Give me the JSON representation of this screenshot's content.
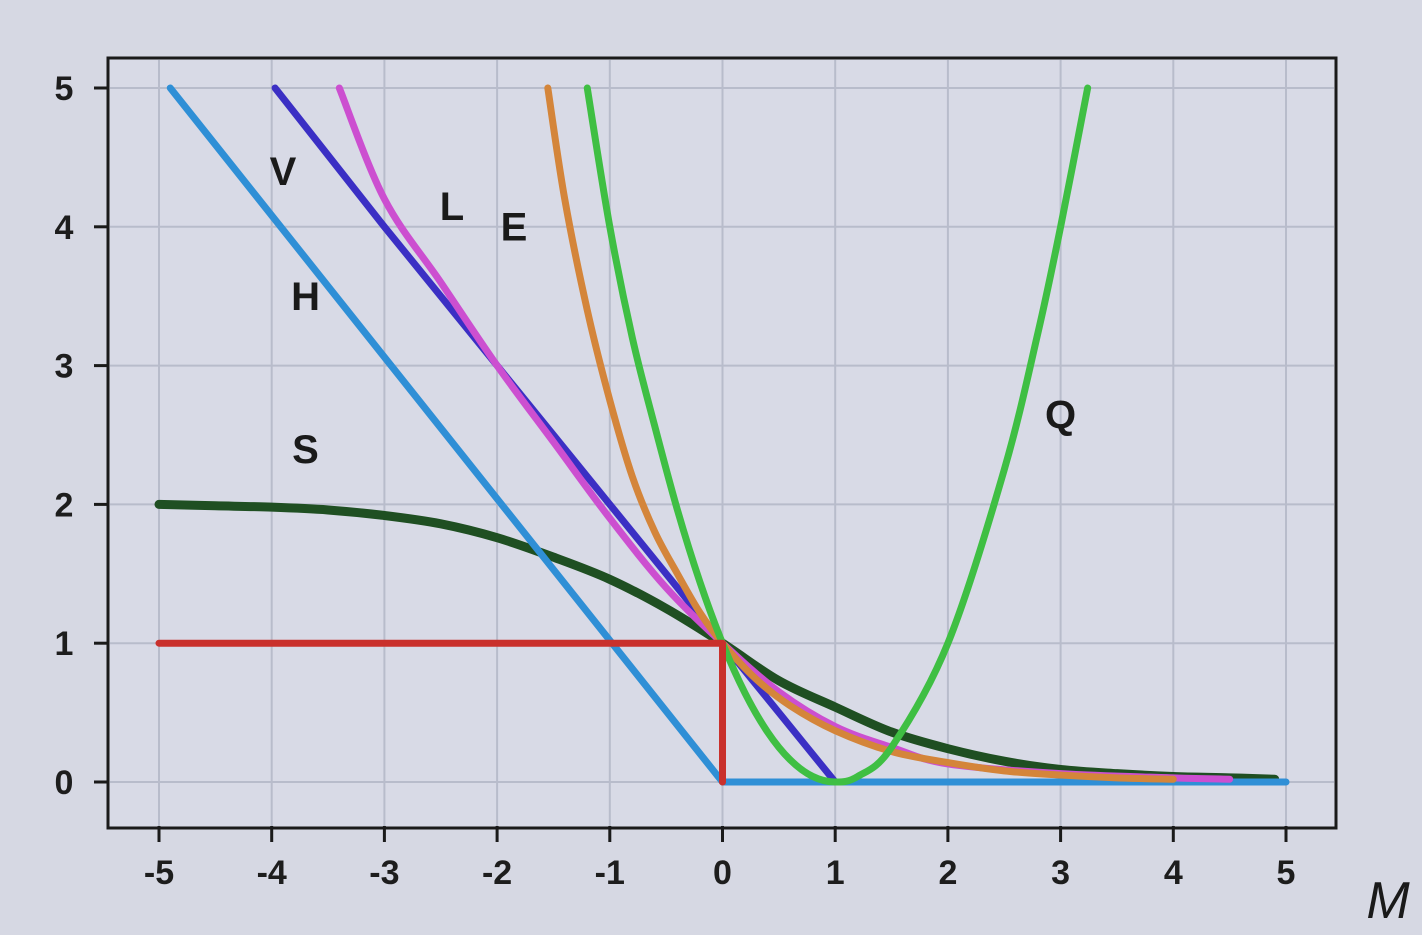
{
  "chart_data": {
    "type": "line",
    "title": "",
    "xlabel": "M",
    "ylabel": "",
    "xlim": [
      -5,
      5
    ],
    "ylim": [
      0,
      5
    ],
    "x_ticks": [
      "-5",
      "-4",
      "-3",
      "-2",
      "-1",
      "0",
      "1",
      "2",
      "3",
      "4",
      "5"
    ],
    "y_ticks": [
      "0",
      "1",
      "2",
      "3",
      "4",
      "5"
    ],
    "grid": true,
    "legend": "none",
    "series": [
      {
        "name": "S",
        "color": "#1f4f22",
        "points": [
          [
            -5,
            2.0
          ],
          [
            -4.5,
            1.99
          ],
          [
            -4,
            1.98
          ],
          [
            -3.5,
            1.96
          ],
          [
            -3,
            1.92
          ],
          [
            -2.5,
            1.86
          ],
          [
            -2,
            1.76
          ],
          [
            -1.5,
            1.62
          ],
          [
            -1,
            1.46
          ],
          [
            -0.5,
            1.25
          ],
          [
            0,
            1.0
          ],
          [
            0.5,
            0.73
          ],
          [
            1,
            0.54
          ],
          [
            1.5,
            0.36
          ],
          [
            2,
            0.24
          ],
          [
            2.5,
            0.15
          ],
          [
            3,
            0.09
          ],
          [
            3.5,
            0.06
          ],
          [
            4,
            0.04
          ],
          [
            4.5,
            0.03
          ],
          [
            4.9,
            0.02
          ]
        ]
      },
      {
        "name": "H",
        "color": "#2f8fd6",
        "points": [
          [
            -4.9,
            5.0
          ],
          [
            0,
            0
          ],
          [
            1,
            0
          ],
          [
            2,
            0
          ],
          [
            3,
            0
          ],
          [
            4,
            0
          ],
          [
            5,
            0
          ]
        ]
      },
      {
        "name": "V",
        "color": "#3b2fc4",
        "points": [
          [
            -3.97,
            5.0
          ],
          [
            -3,
            4.0
          ],
          [
            -2,
            3.0
          ],
          [
            -1.5,
            2.5
          ],
          [
            -1,
            2.0
          ],
          [
            -0.5,
            1.5
          ],
          [
            -0.25,
            1.25
          ],
          [
            0,
            1.0
          ],
          [
            0.25,
            0.75
          ],
          [
            0.5,
            0.5
          ],
          [
            0.75,
            0.25
          ],
          [
            1,
            0
          ]
        ]
      },
      {
        "name": "L",
        "color": "#cc4fd0",
        "points": [
          [
            -3.4,
            5.0
          ],
          [
            -3,
            4.2
          ],
          [
            -2.5,
            3.6
          ],
          [
            -2,
            3.0
          ],
          [
            -1.5,
            2.45
          ],
          [
            -1,
            1.9
          ],
          [
            -0.5,
            1.4
          ],
          [
            0,
            1.0
          ],
          [
            0.5,
            0.65
          ],
          [
            1,
            0.4
          ],
          [
            1.5,
            0.25
          ],
          [
            2,
            0.13
          ],
          [
            3,
            0.06
          ],
          [
            4,
            0.03
          ],
          [
            4.5,
            0.02
          ]
        ]
      },
      {
        "name": "E",
        "color": "#d4853a",
        "points": [
          [
            -1.55,
            5.0
          ],
          [
            -1.4,
            4.2
          ],
          [
            -1.2,
            3.4
          ],
          [
            -1,
            2.75
          ],
          [
            -0.8,
            2.2
          ],
          [
            -0.6,
            1.8
          ],
          [
            -0.4,
            1.5
          ],
          [
            -0.2,
            1.22
          ],
          [
            0,
            1.0
          ],
          [
            0.3,
            0.74
          ],
          [
            0.6,
            0.55
          ],
          [
            1,
            0.37
          ],
          [
            1.5,
            0.22
          ],
          [
            2,
            0.14
          ],
          [
            2.5,
            0.08
          ],
          [
            3,
            0.05
          ],
          [
            3.5,
            0.03
          ],
          [
            4,
            0.02
          ]
        ]
      },
      {
        "name": "Q",
        "color": "#3fbf43",
        "points": [
          [
            -1.2,
            5.0
          ],
          [
            -1,
            4.0
          ],
          [
            -0.8,
            3.2
          ],
          [
            -0.6,
            2.56
          ],
          [
            -0.4,
            1.96
          ],
          [
            -0.2,
            1.44
          ],
          [
            0,
            1.0
          ],
          [
            0.2,
            0.64
          ],
          [
            0.4,
            0.36
          ],
          [
            0.6,
            0.16
          ],
          [
            0.8,
            0.04
          ],
          [
            1,
            0
          ],
          [
            1.2,
            0.04
          ],
          [
            1.5,
            0.25
          ],
          [
            2,
            1.0
          ],
          [
            2.5,
            2.25
          ],
          [
            2.8,
            3.24
          ],
          [
            3.0,
            4.0
          ],
          [
            3.24,
            5.0
          ]
        ]
      },
      {
        "name": "",
        "color": "#c9302c",
        "points": [
          [
            -5,
            1
          ],
          [
            0,
            1
          ],
          [
            0,
            0
          ]
        ]
      }
    ],
    "curve_labels": [
      {
        "text": "V",
        "x": -3.9,
        "y": 4.3
      },
      {
        "text": "H",
        "x": -3.7,
        "y": 3.4
      },
      {
        "text": "S",
        "x": -3.7,
        "y": 2.3
      },
      {
        "text": "L",
        "x": -2.4,
        "y": 4.05
      },
      {
        "text": "E",
        "x": -1.85,
        "y": 3.9
      },
      {
        "text": "Q",
        "x": 3.0,
        "y": 2.55
      }
    ]
  }
}
